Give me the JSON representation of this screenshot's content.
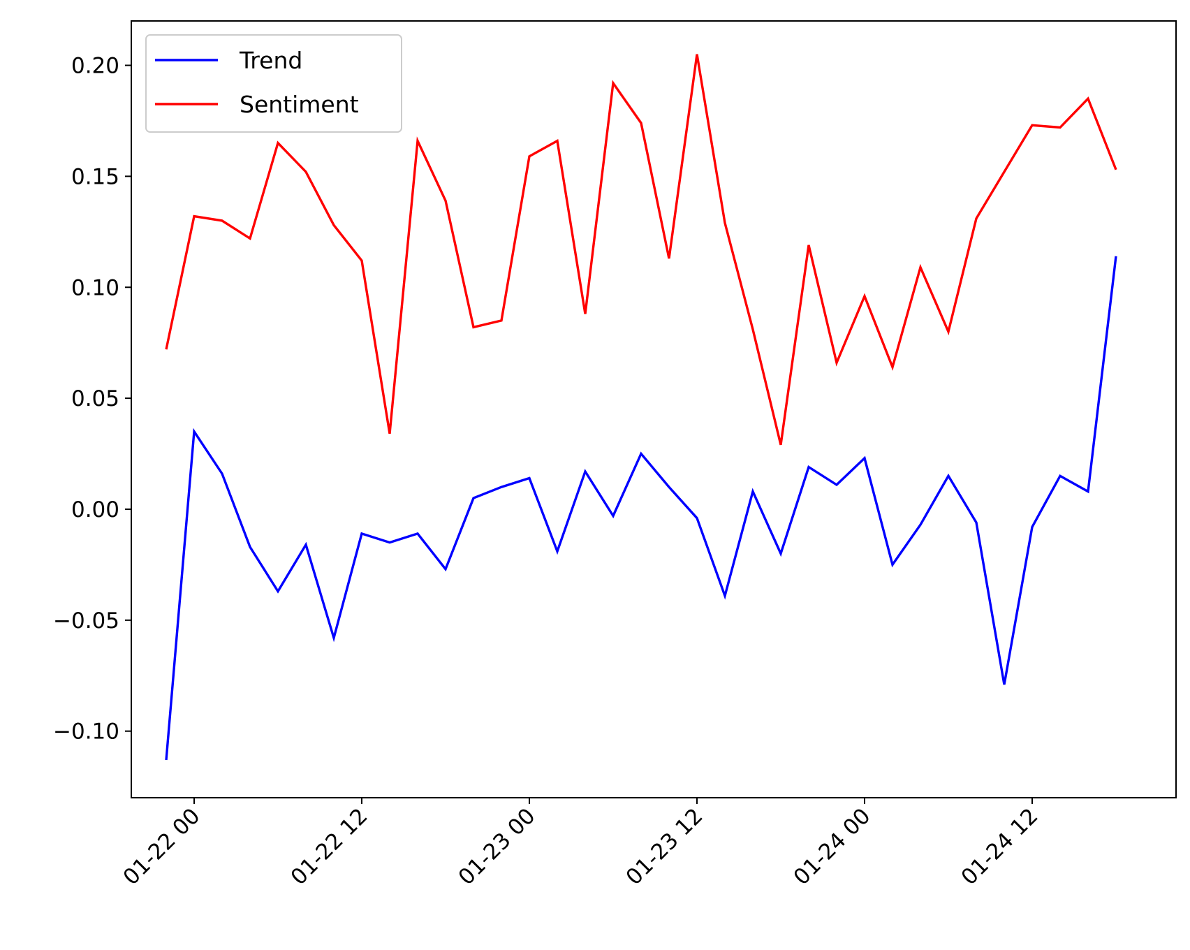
{
  "chart_data": {
    "type": "line",
    "title": "",
    "xlabel": "",
    "ylabel": "",
    "x_start": "2024-01-21 22:00",
    "x_step_hours": 2,
    "x_ticks": [
      "01-22 00",
      "01-22 12",
      "01-23 00",
      "01-23 12",
      "01-24 00",
      "01-24 12"
    ],
    "x_tick_hours": [
      0,
      12,
      24,
      36,
      48,
      60
    ],
    "ylim": [
      -0.13,
      0.22
    ],
    "y_ticks": [
      -0.1,
      -0.05,
      0.0,
      0.05,
      0.1,
      0.15,
      0.2
    ],
    "y_tick_labels": [
      "−0.10",
      "−0.05",
      "0.00",
      "0.05",
      "0.10",
      "0.15",
      "0.20"
    ],
    "grid": false,
    "legend_position": "upper-left",
    "series": [
      {
        "name": "Trend",
        "color": "#0000ff",
        "values": [
          -0.113,
          0.035,
          0.016,
          -0.017,
          -0.037,
          -0.016,
          -0.058,
          -0.011,
          -0.015,
          -0.011,
          -0.027,
          0.005,
          0.01,
          0.014,
          -0.019,
          0.017,
          -0.003,
          0.025,
          0.01,
          -0.004,
          -0.039,
          0.008,
          -0.02,
          0.019,
          0.011,
          0.023,
          -0.025,
          -0.007,
          0.015,
          -0.006,
          -0.079,
          -0.008,
          0.015,
          0.008,
          0.114
        ]
      },
      {
        "name": "Sentiment",
        "color": "#ff0000",
        "values": [
          0.072,
          0.132,
          0.13,
          0.122,
          0.165,
          0.152,
          0.128,
          0.112,
          0.034,
          0.166,
          0.139,
          0.082,
          0.085,
          0.159,
          0.166,
          0.088,
          0.192,
          0.174,
          0.113,
          0.205,
          0.129,
          0.081,
          0.029,
          0.119,
          0.066,
          0.096,
          0.064,
          0.109,
          0.08,
          0.131,
          0.152,
          0.173,
          0.172,
          0.185,
          0.153
        ]
      }
    ]
  }
}
